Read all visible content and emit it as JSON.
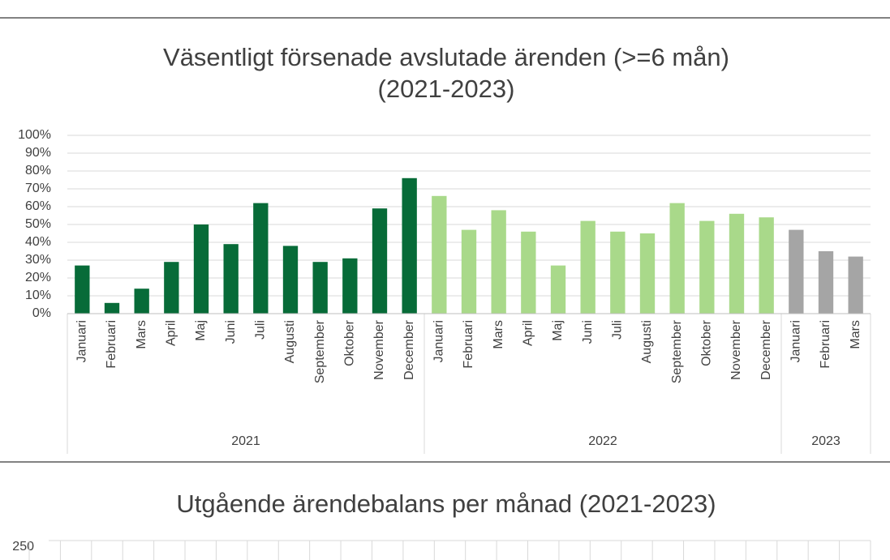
{
  "chart_data": [
    {
      "type": "bar",
      "title": [
        "Väsentligt försenade avslutade ärenden (>=6 mån)",
        "(2021-2023)"
      ],
      "ylim": [
        0,
        100
      ],
      "yticks": [
        {
          "value": 0,
          "label": "0%"
        },
        {
          "value": 10,
          "label": "10%"
        },
        {
          "value": 20,
          "label": "20%"
        },
        {
          "value": 30,
          "label": "30%"
        },
        {
          "value": 40,
          "label": "40%"
        },
        {
          "value": 50,
          "label": "50%"
        },
        {
          "value": 60,
          "label": "60%"
        },
        {
          "value": 70,
          "label": "70%"
        },
        {
          "value": 80,
          "label": "80%"
        },
        {
          "value": 90,
          "label": "90%"
        },
        {
          "value": 100,
          "label": "100%"
        }
      ],
      "grid": true,
      "series": [
        {
          "name": "2021",
          "color": "#076b38",
          "categories": [
            "Januari",
            "Februari",
            "Mars",
            "April",
            "Maj",
            "Juni",
            "Juli",
            "Augusti",
            "September",
            "Oktober",
            "November",
            "December"
          ],
          "values": [
            27,
            6,
            14,
            29,
            50,
            39,
            62,
            38,
            29,
            31,
            59,
            76
          ]
        },
        {
          "name": "2022",
          "color": "#a9d98a",
          "categories": [
            "Januari",
            "Februari",
            "Mars",
            "April",
            "Maj",
            "Juni",
            "Juli",
            "Augusti",
            "September",
            "Oktober",
            "November",
            "December"
          ],
          "values": [
            66,
            47,
            58,
            46,
            27,
            52,
            46,
            45,
            62,
            52,
            56,
            54
          ]
        },
        {
          "name": "2023",
          "color": "#a5a5a5",
          "categories": [
            "Januari",
            "Februari",
            "Mars"
          ],
          "values": [
            47,
            35,
            32
          ]
        }
      ]
    },
    {
      "type": "bar",
      "title": [
        "Utgående ärendebalans per månad (2021-2023)"
      ],
      "yticks": [
        250
      ]
    }
  ]
}
